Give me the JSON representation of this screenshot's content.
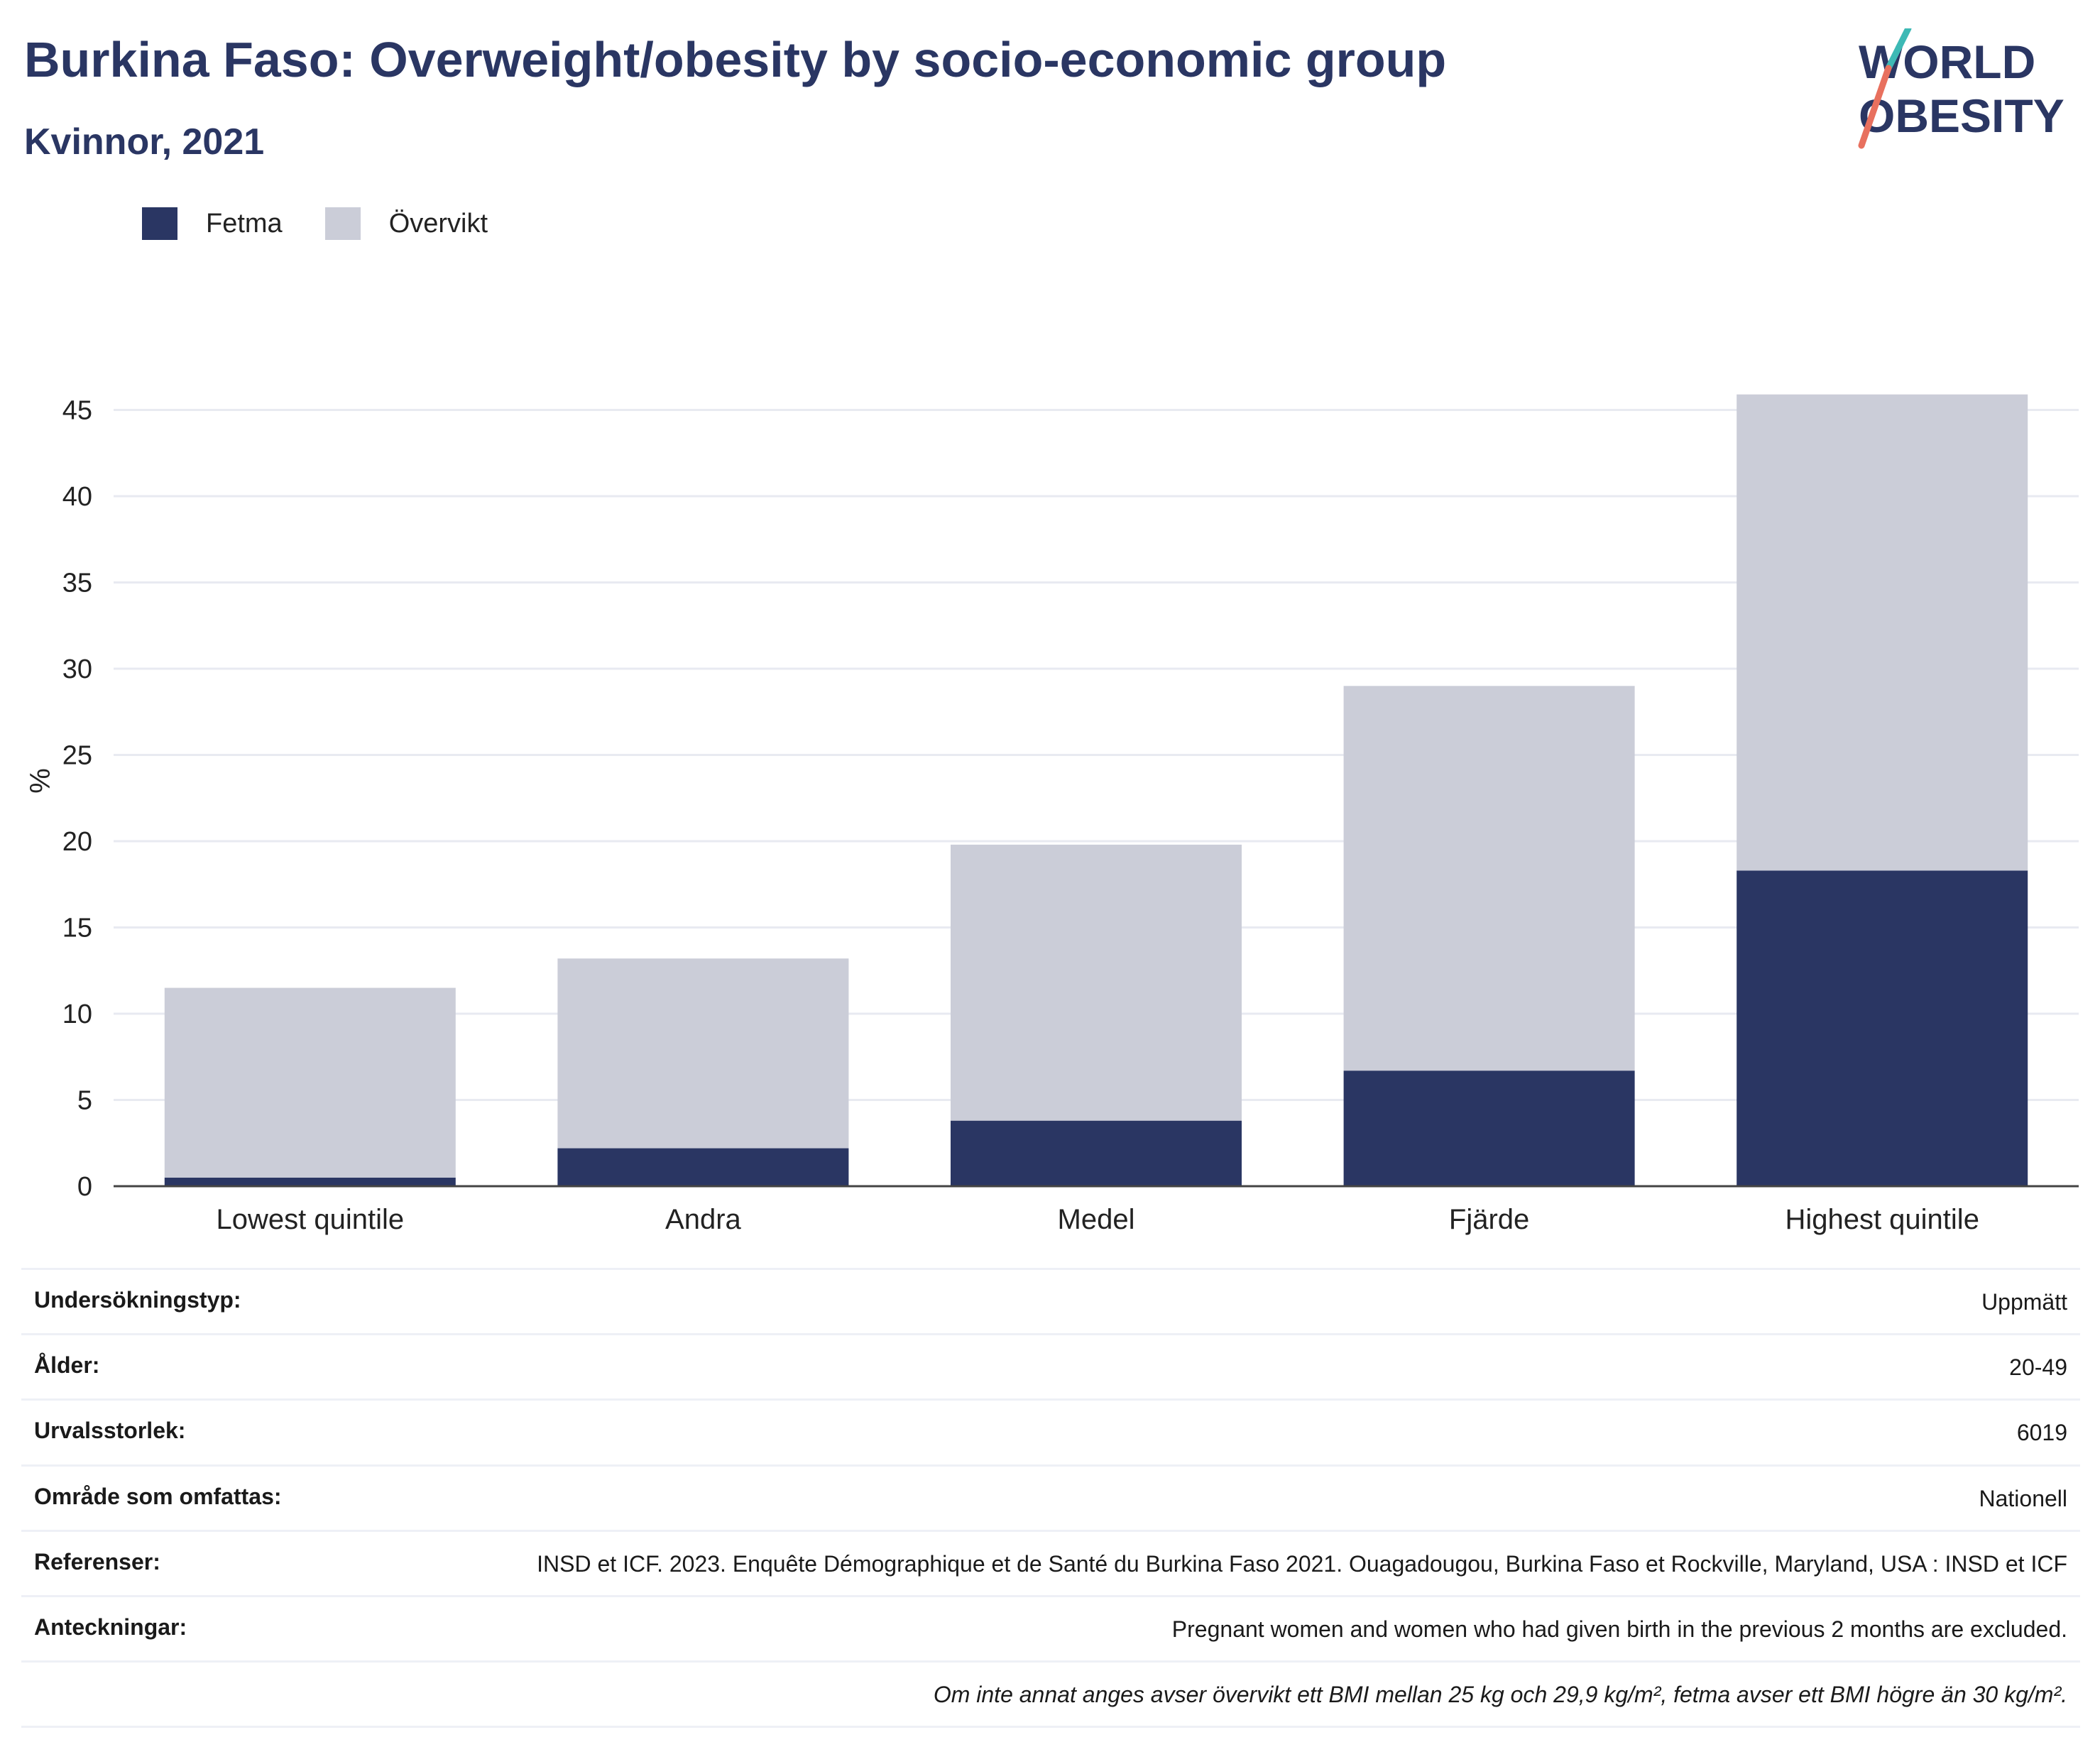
{
  "header": {
    "title": "Burkina Faso: Overweight/obesity by socio-economic group",
    "subtitle": "Kvinnor, 2021"
  },
  "logo": {
    "line1": "WORLD",
    "line2": "OBESITY"
  },
  "colors": {
    "fetma": "#2a3663",
    "overvikt": "#cbcdd8",
    "title": "#2a3663",
    "grid": "#e8eaf1",
    "logo_teal": "#3db9b5",
    "logo_coral": "#e8705e"
  },
  "chart_data": {
    "type": "bar",
    "stacked": true,
    "categories": [
      "Lowest quintile",
      "Andra",
      "Medel",
      "Fjärde",
      "Highest quintile"
    ],
    "series": [
      {
        "name": "Fetma",
        "values": [
          0.5,
          2.2,
          3.8,
          6.7,
          18.3
        ]
      },
      {
        "name": "Övervikt",
        "values": [
          11.0,
          11.0,
          16.0,
          22.3,
          27.6
        ]
      }
    ],
    "ylabel": "%",
    "xlabel": "",
    "ylim": [
      0,
      47
    ],
    "yticks": [
      0,
      5,
      10,
      15,
      20,
      25,
      30,
      35,
      40,
      45
    ],
    "grid": true,
    "legend_position": "top-left"
  },
  "info": {
    "rows": [
      {
        "label": "Undersökningstyp:",
        "value": "Uppmätt"
      },
      {
        "label": "Ålder:",
        "value": "20-49"
      },
      {
        "label": "Urvalsstorlek:",
        "value": "6019"
      },
      {
        "label": "Område som omfattas:",
        "value": "Nationell"
      },
      {
        "label": "Referenser:",
        "value": "INSD et ICF. 2023. Enquête Démographique et de Santé du Burkina Faso 2021. Ouagadougou, Burkina Faso et Rockville, Maryland, USA : INSD et ICF"
      },
      {
        "label": "Anteckningar:",
        "value": "Pregnant women and women who had given birth in the previous 2 months are excluded."
      }
    ],
    "footnote": "Om inte annat anges avser övervikt ett BMI mellan 25 kg och 29,9 kg/m², fetma avser ett BMI högre än 30 kg/m²."
  }
}
